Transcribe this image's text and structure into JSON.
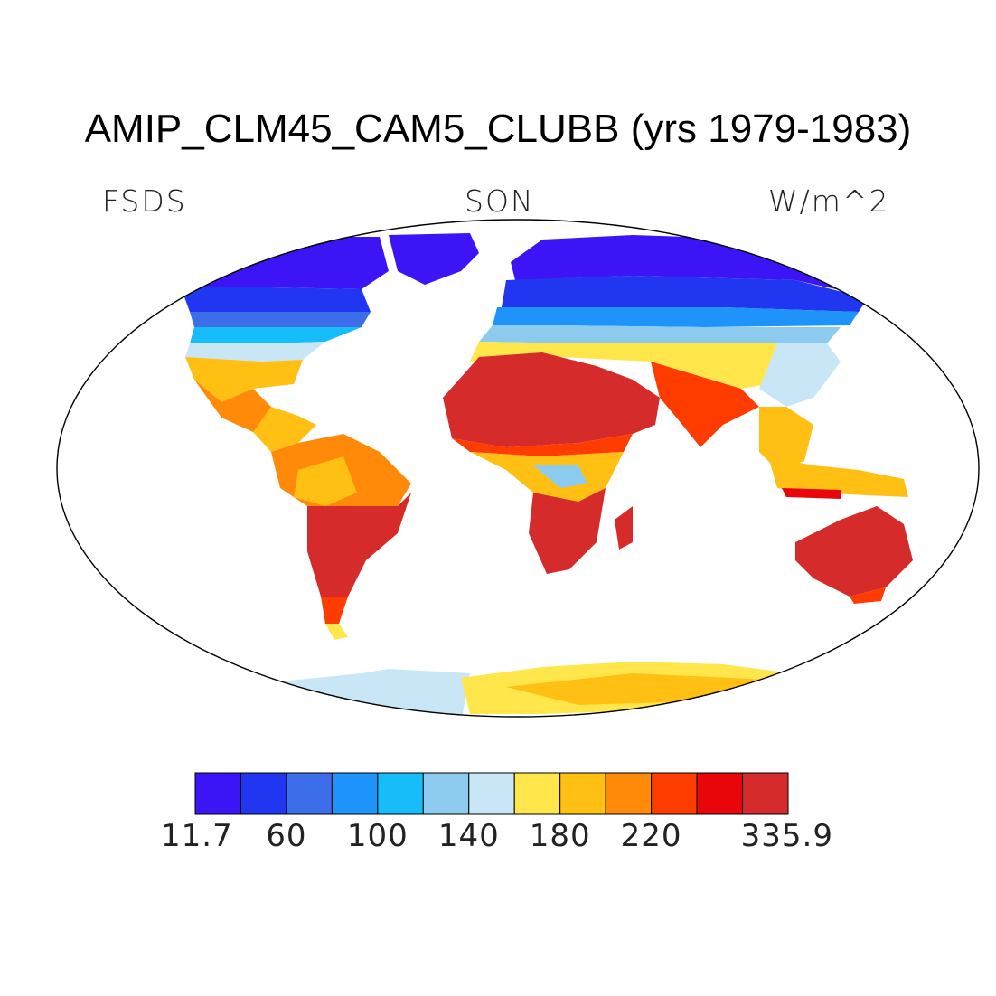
{
  "title": "AMIP_CLM45_CAM5_CLUBB (yrs 1979-1983)",
  "left_label": "FSDS",
  "center_label": "SON",
  "right_label": "W/m^2",
  "colorbar": {
    "colors": [
      "#3c14f5",
      "#2136f0",
      "#3d6ee9",
      "#1e94fb",
      "#16bdf8",
      "#8dcbee",
      "#c8e6f5",
      "#ffe64b",
      "#ffbf13",
      "#ff8a0a",
      "#ff3c00",
      "#e8060a",
      "#d52b2b"
    ],
    "ticks": [
      {
        "label": "11.7",
        "index": 0
      },
      {
        "label": "60",
        "index": 2
      },
      {
        "label": "100",
        "index": 4
      },
      {
        "label": "140",
        "index": 6
      },
      {
        "label": "180",
        "index": 8
      },
      {
        "label": "220",
        "index": 10
      },
      {
        "label": "335.9",
        "index": 13
      }
    ]
  }
}
